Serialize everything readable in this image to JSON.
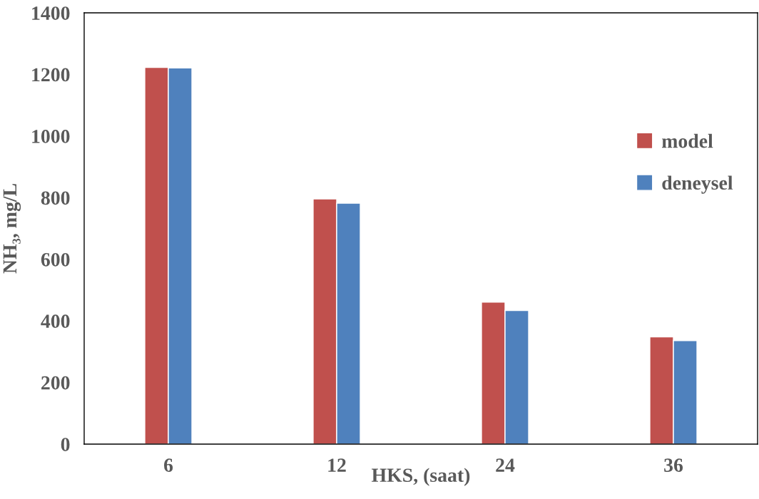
{
  "chart_data": {
    "type": "bar",
    "xlabel": "HKS, (saat)",
    "ylabel": "NH₃, mg/L",
    "categories": [
      "6",
      "12",
      "24",
      "36"
    ],
    "series": [
      {
        "name": "model",
        "color": "#c0504d",
        "values": [
          1223,
          796,
          461,
          348
        ]
      },
      {
        "name": "deneysel",
        "color": "#4f81bd",
        "values": [
          1221,
          782,
          434,
          336
        ]
      }
    ],
    "ylim": [
      0,
      1400
    ],
    "yticks": [
      0,
      200,
      400,
      600,
      800,
      1000,
      1200,
      1400
    ],
    "grid": false,
    "legend": "right"
  }
}
